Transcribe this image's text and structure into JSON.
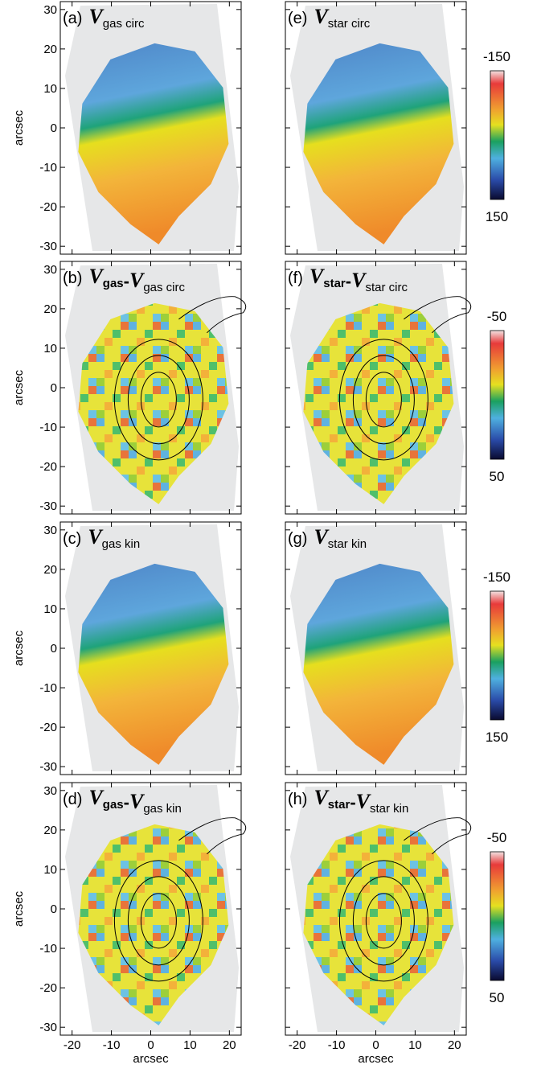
{
  "chart_data": [
    {
      "type": "map",
      "title": {
        "label": "(a)",
        "parts": [
          {
            "main": "V",
            "sub": "gas circ"
          }
        ]
      },
      "kind": "velocity",
      "ylabel": "arcsec",
      "xlim": [
        -23,
        23
      ],
      "ylim": [
        -32,
        32
      ],
      "xticks": [
        -20,
        -10,
        0,
        10,
        20
      ],
      "yticks": [
        -30,
        -20,
        -10,
        0,
        10,
        20,
        30
      ],
      "show_xtick_labels": false,
      "show_ytick_labels": true
    },
    {
      "type": "map",
      "title": {
        "label": "(b)",
        "parts": [
          {
            "main": "V",
            "sub": "gas"
          },
          {
            "op": "-"
          },
          {
            "main": "V",
            "sub": "gas circ"
          }
        ]
      },
      "kind": "residual",
      "ylabel": "arcsec",
      "xlim": [
        -23,
        23
      ],
      "ylim": [
        -32,
        32
      ],
      "xticks": [
        -20,
        -10,
        0,
        10,
        20
      ],
      "yticks": [
        -30,
        -20,
        -10,
        0,
        10,
        20,
        30
      ],
      "show_xtick_labels": false,
      "show_ytick_labels": true
    },
    {
      "type": "map",
      "title": {
        "label": "(c)",
        "parts": [
          {
            "main": "V",
            "sub": "gas kin"
          }
        ]
      },
      "kind": "velocity",
      "ylabel": "arcsec",
      "xlim": [
        -23,
        23
      ],
      "ylim": [
        -32,
        32
      ],
      "xticks": [
        -20,
        -10,
        0,
        10,
        20
      ],
      "yticks": [
        -30,
        -20,
        -10,
        0,
        10,
        20,
        30
      ],
      "show_xtick_labels": false,
      "show_ytick_labels": true
    },
    {
      "type": "map",
      "title": {
        "label": "(d)",
        "parts": [
          {
            "main": "V",
            "sub": "gas"
          },
          {
            "op": "-"
          },
          {
            "main": "V",
            "sub": "gas kin"
          }
        ]
      },
      "kind": "residual",
      "ylabel": "arcsec",
      "xlabel": "arcsec",
      "xlim": [
        -23,
        23
      ],
      "ylim": [
        -32,
        32
      ],
      "xticks": [
        -20,
        -10,
        0,
        10,
        20
      ],
      "yticks": [
        -30,
        -20,
        -10,
        0,
        10,
        20,
        30
      ],
      "show_xtick_labels": true,
      "show_ytick_labels": true
    },
    {
      "type": "map",
      "title": {
        "label": "(e)",
        "parts": [
          {
            "main": "V",
            "sub": "star circ"
          }
        ]
      },
      "kind": "velocity",
      "xlim": [
        -23,
        23
      ],
      "ylim": [
        -32,
        32
      ],
      "xticks": [
        -20,
        -10,
        0,
        10,
        20
      ],
      "yticks": [
        -30,
        -20,
        -10,
        0,
        10,
        20,
        30
      ],
      "show_xtick_labels": false,
      "show_ytick_labels": false,
      "colorbar": {
        "lim": [
          -150,
          150
        ]
      }
    },
    {
      "type": "map",
      "title": {
        "label": "(f)",
        "parts": [
          {
            "main": "V",
            "sub": "star"
          },
          {
            "op": "-"
          },
          {
            "main": "V",
            "sub": "star circ"
          }
        ]
      },
      "kind": "residual",
      "xlim": [
        -23,
        23
      ],
      "ylim": [
        -32,
        32
      ],
      "xticks": [
        -20,
        -10,
        0,
        10,
        20
      ],
      "yticks": [
        -30,
        -20,
        -10,
        0,
        10,
        20,
        30
      ],
      "show_xtick_labels": false,
      "show_ytick_labels": false,
      "colorbar": {
        "lim": [
          -50,
          50
        ]
      }
    },
    {
      "type": "map",
      "title": {
        "label": "(g)",
        "parts": [
          {
            "main": "V",
            "sub": "star kin"
          }
        ]
      },
      "kind": "velocity",
      "xlim": [
        -23,
        23
      ],
      "ylim": [
        -32,
        32
      ],
      "xticks": [
        -20,
        -10,
        0,
        10,
        20
      ],
      "yticks": [
        -30,
        -20,
        -10,
        0,
        10,
        20,
        30
      ],
      "show_xtick_labels": false,
      "show_ytick_labels": false,
      "colorbar": {
        "lim": [
          -150,
          150
        ]
      }
    },
    {
      "type": "map",
      "title": {
        "label": "(h)",
        "parts": [
          {
            "main": "V",
            "sub": "star"
          },
          {
            "op": "-"
          },
          {
            "main": "V",
            "sub": "star kin"
          }
        ]
      },
      "kind": "residual",
      "xlabel": "arcsec",
      "xlim": [
        -23,
        23
      ],
      "ylim": [
        -32,
        32
      ],
      "xticks": [
        -20,
        -10,
        0,
        10,
        20
      ],
      "yticks": [
        -30,
        -20,
        -10,
        0,
        10,
        20,
        30
      ],
      "show_xtick_labels": true,
      "show_ytick_labels": false,
      "colorbar": {
        "lim": [
          -50,
          50
        ]
      }
    }
  ]
}
